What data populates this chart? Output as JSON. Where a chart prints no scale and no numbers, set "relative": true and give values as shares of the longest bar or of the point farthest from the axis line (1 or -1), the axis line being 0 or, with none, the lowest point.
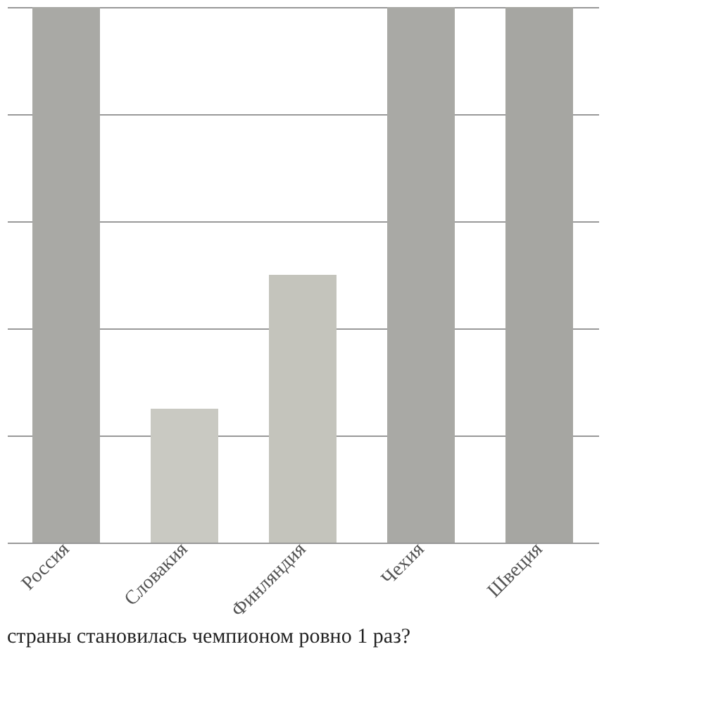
{
  "chart_data": {
    "type": "bar",
    "relative": true,
    "categories": [
      "Россия",
      "Словакия",
      "Финляндия",
      "Чехия",
      "Швеция"
    ],
    "values": [
      1,
      0.25,
      0.5,
      1,
      1
    ],
    "colors": [
      "#a9a9a5",
      "#c9c9c2",
      "#c4c4bc",
      "#a9a9a5",
      "#a6a6a2"
    ],
    "grid": "y",
    "annotations": [
      "страны становилась чемпионом ровно 1 раз?"
    ]
  }
}
